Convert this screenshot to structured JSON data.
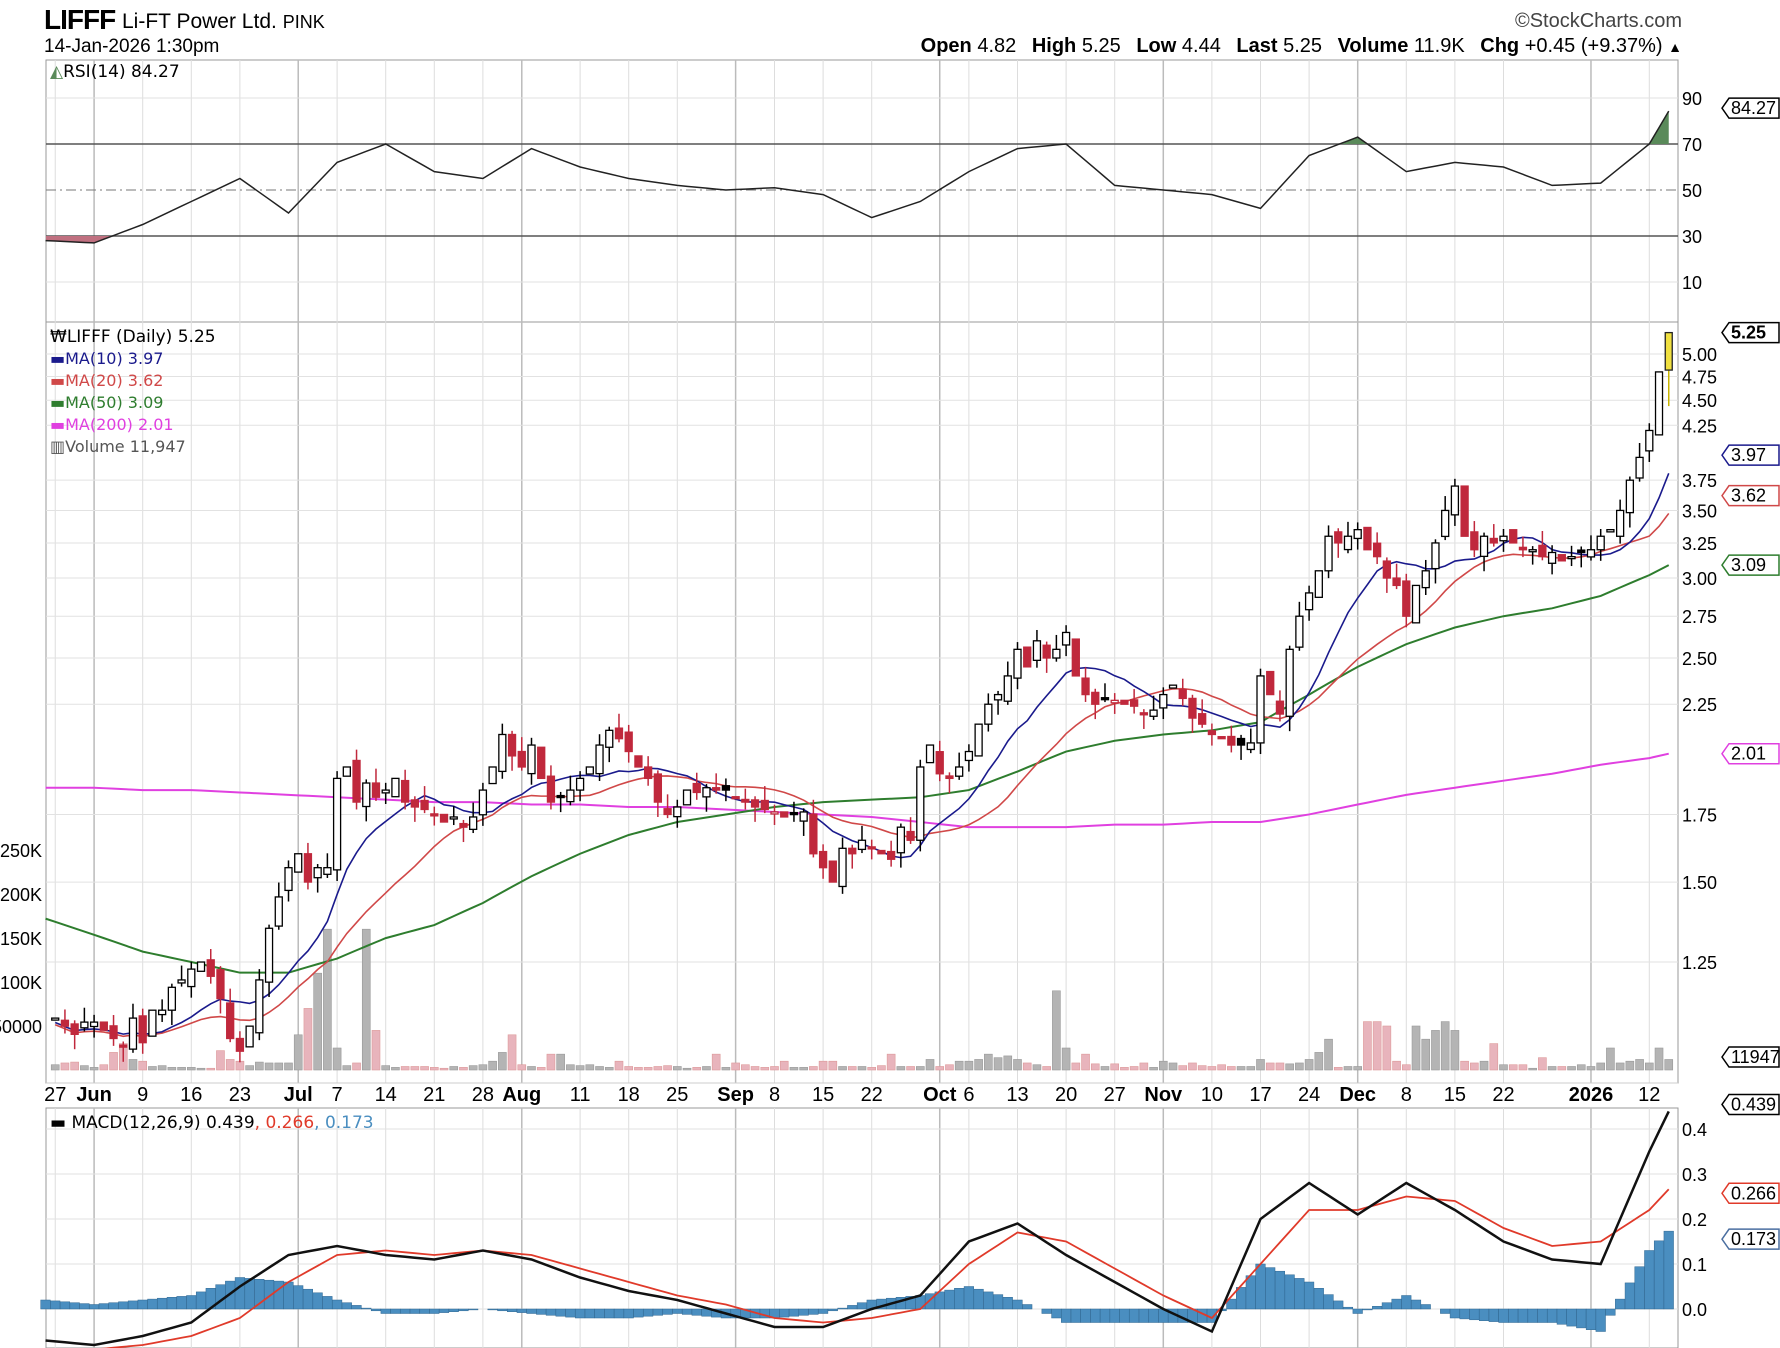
{
  "header": {
    "symbol": "LIFFF",
    "name": "Li-FT Power Ltd.",
    "exchange": "PINK",
    "datetime": "14-Jan-2026 1:30pm",
    "copyright": "©StockCharts.com",
    "open_label": "Open",
    "open": "4.82",
    "high_label": "High",
    "high": "5.25",
    "low_label": "Low",
    "low": "4.44",
    "last_label": "Last",
    "last": "5.25",
    "volume_label": "Volume",
    "volume": "11.9K",
    "chg_label": "Chg",
    "chg": "+0.45 (+9.37%)",
    "chg_arrow": "▲"
  },
  "legends": {
    "rsi": "RSI(14) 84.27",
    "price": "LIFFF (Daily) 5.25",
    "ma10": "MA(10) 3.97",
    "ma20": "MA(20) 3.62",
    "ma50": "MA(50) 3.09",
    "ma200": "MA(200) 2.01",
    "volume": "Volume 11,947",
    "macd_prefix": "MACD(12,26,9) 0.439",
    "macd_signal": ", 0.266",
    "macd_hist": ", 0.173"
  },
  "colors": {
    "ma10": "#1a1a8c",
    "ma20": "#d04848",
    "ma50": "#2e7d2e",
    "ma200": "#e040e0",
    "up": "#000000",
    "down": "#c0283c",
    "rsi_fill": "#5a8a5a",
    "hist": "#4a8ec0",
    "signal": "#e03a2a",
    "macd": "#111111",
    "vol_up": "#b4b4b4",
    "vol_down": "#e8b4bc",
    "last": "#f0e040"
  },
  "chart_data": {
    "type": "candlestick",
    "x_axis_labels": [
      {
        "i": 1,
        "t": "27"
      },
      {
        "i": 5,
        "t": "Jun",
        "b": true
      },
      {
        "i": 10,
        "t": "9"
      },
      {
        "i": 15,
        "t": "16"
      },
      {
        "i": 20,
        "t": "23"
      },
      {
        "i": 26,
        "t": "Jul",
        "b": true
      },
      {
        "i": 30,
        "t": "7"
      },
      {
        "i": 35,
        "t": "14"
      },
      {
        "i": 40,
        "t": "21"
      },
      {
        "i": 45,
        "t": "28"
      },
      {
        "i": 49,
        "t": "Aug",
        "b": true
      },
      {
        "i": 55,
        "t": "11"
      },
      {
        "i": 60,
        "t": "18"
      },
      {
        "i": 65,
        "t": "25"
      },
      {
        "i": 71,
        "t": "Sep",
        "b": true
      },
      {
        "i": 75,
        "t": "8"
      },
      {
        "i": 80,
        "t": "15"
      },
      {
        "i": 85,
        "t": "22"
      },
      {
        "i": 92,
        "t": "Oct",
        "b": true
      },
      {
        "i": 95,
        "t": "6"
      },
      {
        "i": 100,
        "t": "13"
      },
      {
        "i": 105,
        "t": "20"
      },
      {
        "i": 110,
        "t": "27"
      },
      {
        "i": 115,
        "t": "Nov",
        "b": true
      },
      {
        "i": 120,
        "t": "10"
      },
      {
        "i": 125,
        "t": "17"
      },
      {
        "i": 130,
        "t": "24"
      },
      {
        "i": 135,
        "t": "Dec",
        "b": true
      },
      {
        "i": 140,
        "t": "8"
      },
      {
        "i": 145,
        "t": "15"
      },
      {
        "i": 150,
        "t": "22"
      },
      {
        "i": 159,
        "t": "2026",
        "b": true
      },
      {
        "i": 165,
        "t": "12"
      }
    ],
    "start_index": 1,
    "closes": [
      1.1,
      1.08,
      1.06,
      1.09,
      1.09,
      1.07,
      1.05,
      1.03,
      1.1,
      1.04,
      1.12,
      1.12,
      1.18,
      1.2,
      1.23,
      1.25,
      1.21,
      1.15,
      1.05,
      1.02,
      1.08,
      1.2,
      1.35,
      1.45,
      1.55,
      1.6,
      1.5,
      1.55,
      1.55,
      1.9,
      1.95,
      1.8,
      1.88,
      1.82,
      1.85,
      1.9,
      1.8,
      1.78,
      1.77,
      1.75,
      1.72,
      1.74,
      1.7,
      1.74,
      1.85,
      1.95,
      2.1,
      2.0,
      1.95,
      2.05,
      1.9,
      1.8,
      1.82,
      1.85,
      1.9,
      1.95,
      2.05,
      2.12,
      2.08,
      2.02,
      1.95,
      1.9,
      1.8,
      1.75,
      1.78,
      1.85,
      1.84,
      1.86,
      1.85,
      1.85,
      1.82,
      1.8,
      1.78,
      1.77,
      1.76,
      1.74,
      1.75,
      1.76,
      1.6,
      1.55,
      1.5,
      1.62,
      1.6,
      1.65,
      1.62,
      1.6,
      1.58,
      1.7,
      1.65,
      1.95,
      2.05,
      1.92,
      1.9,
      1.95,
      2.02,
      2.15,
      2.25,
      2.3,
      2.4,
      2.55,
      2.45,
      2.6,
      2.5,
      2.55,
      2.65,
      2.4,
      2.3,
      2.25,
      2.28,
      2.27,
      2.25,
      2.24,
      2.2,
      2.22,
      2.3,
      2.35,
      2.28,
      2.18,
      2.15,
      2.1,
      2.08,
      2.05,
      2.05,
      2.06,
      2.4,
      2.3,
      2.2,
      2.55,
      2.75,
      2.9,
      3.05,
      3.3,
      3.25,
      3.3,
      3.35,
      3.2,
      3.15,
      3.0,
      2.95,
      2.75,
      2.95,
      3.05,
      3.25,
      3.5,
      3.7,
      3.3,
      3.2,
      3.3,
      3.25,
      3.3,
      3.25,
      3.2,
      3.2,
      3.15,
      3.18,
      3.12,
      3.15,
      3.18,
      3.2,
      3.3,
      3.35,
      3.5,
      3.75,
      3.95,
      4.2,
      4.8,
      5.25
    ],
    "volumes_k": [
      6,
      8,
      9,
      5,
      3,
      6,
      20,
      30,
      12,
      10,
      4,
      5,
      3,
      3,
      3,
      2,
      2,
      22,
      12,
      10,
      5,
      9,
      8,
      8,
      8,
      40,
      70,
      110,
      160,
      25,
      5,
      8,
      160,
      45,
      5,
      3,
      4,
      4,
      4,
      3,
      2,
      4,
      3,
      5,
      6,
      10,
      20,
      40,
      6,
      4,
      3,
      18,
      18,
      6,
      5,
      6,
      4,
      3,
      10,
      4,
      3,
      3,
      4,
      5,
      4,
      2,
      3,
      4,
      18,
      3,
      8,
      6,
      4,
      3,
      4,
      10,
      3,
      3,
      4,
      10,
      10,
      4,
      4,
      4,
      3,
      5,
      18,
      4,
      4,
      4,
      12,
      4,
      6,
      10,
      10,
      12,
      18,
      14,
      16,
      12,
      8,
      6,
      4,
      90,
      25,
      8,
      18,
      7,
      4,
      7,
      3,
      4,
      8,
      3,
      10,
      8,
      5,
      8,
      5,
      4,
      6,
      4,
      4,
      4,
      12,
      8,
      8,
      7,
      8,
      12,
      20,
      35,
      3,
      4,
      4,
      55,
      55,
      50,
      10,
      6,
      50,
      35,
      45,
      55,
      45,
      10,
      8,
      10,
      30,
      6,
      6,
      6,
      2,
      14,
      4,
      4,
      4,
      6,
      4,
      8,
      25,
      8,
      10,
      12,
      8,
      25,
      11.947
    ],
    "last_candle": {
      "open": 4.82,
      "high": 5.25,
      "low": 4.44,
      "close": 5.25
    },
    "sample_step": 5,
    "ma50": [
      1.38,
      1.33,
      1.28,
      1.25,
      1.22,
      1.22,
      1.26,
      1.32,
      1.36,
      1.43,
      1.52,
      1.6,
      1.67,
      1.72,
      1.75,
      1.78,
      1.8,
      1.81,
      1.82,
      1.85,
      1.93,
      2.02,
      2.07,
      2.1,
      2.12,
      2.16,
      2.3,
      2.45,
      2.58,
      2.68,
      2.75,
      2.8,
      2.88,
      3.02,
      3.09
    ],
    "ma200": [
      1.86,
      1.86,
      1.85,
      1.85,
      1.84,
      1.83,
      1.82,
      1.81,
      1.8,
      1.8,
      1.79,
      1.79,
      1.78,
      1.78,
      1.77,
      1.76,
      1.75,
      1.74,
      1.72,
      1.7,
      1.7,
      1.7,
      1.71,
      1.71,
      1.72,
      1.72,
      1.75,
      1.79,
      1.83,
      1.86,
      1.89,
      1.92,
      1.96,
      1.99,
      2.01
    ],
    "rsi": [
      28,
      27,
      35,
      45,
      55,
      40,
      62,
      70,
      58,
      55,
      68,
      60,
      55,
      52,
      50,
      51,
      48,
      38,
      45,
      58,
      68,
      70,
      52,
      50,
      48,
      42,
      65,
      73,
      58,
      62,
      60,
      52,
      53,
      70,
      84.27
    ],
    "macd": [
      -0.07,
      -0.08,
      -0.06,
      -0.03,
      0.05,
      0.12,
      0.14,
      0.12,
      0.11,
      0.13,
      0.11,
      0.07,
      0.04,
      0.02,
      -0.01,
      -0.04,
      -0.04,
      0.0,
      0.03,
      0.15,
      0.19,
      0.12,
      0.06,
      0.0,
      -0.05,
      0.2,
      0.28,
      0.21,
      0.28,
      0.22,
      0.15,
      0.11,
      0.1,
      0.35,
      0.439
    ],
    "signal": [
      -0.09,
      -0.09,
      -0.08,
      -0.06,
      -0.02,
      0.06,
      0.12,
      0.13,
      0.12,
      0.13,
      0.12,
      0.09,
      0.06,
      0.03,
      0.01,
      -0.02,
      -0.03,
      -0.02,
      0.0,
      0.1,
      0.17,
      0.15,
      0.09,
      0.03,
      -0.02,
      0.1,
      0.22,
      0.22,
      0.25,
      0.24,
      0.18,
      0.14,
      0.15,
      0.22,
      0.266
    ],
    "rsi_ticks": [
      "90",
      "70",
      "50",
      "30",
      "10"
    ],
    "price_ticks": [
      "5.00",
      "4.75",
      "4.50",
      "4.25",
      "3.75",
      "3.50",
      "3.25",
      "3.00",
      "2.75",
      "2.50",
      "2.25",
      "1.75",
      "1.50",
      "1.25"
    ],
    "volume_ticks": [
      {
        "v": 250000,
        "t": "250K"
      },
      {
        "v": 200000,
        "t": "200K"
      },
      {
        "v": 150000,
        "t": "150K"
      },
      {
        "v": 100000,
        "t": "100K"
      },
      {
        "v": 50000,
        "t": "50000"
      }
    ],
    "macd_ticks": [
      "0.4",
      "0.3",
      "0.2",
      "0.1",
      "0.0"
    ],
    "tags": {
      "rsi": "84.27",
      "last": "5.25",
      "ma10": "3.97",
      "ma20": "3.62",
      "ma50": "3.09",
      "ma200": "2.01",
      "volume": "11947",
      "macd": "0.439",
      "signal": "0.266",
      "hist": "0.173"
    },
    "price_scale": "log"
  }
}
